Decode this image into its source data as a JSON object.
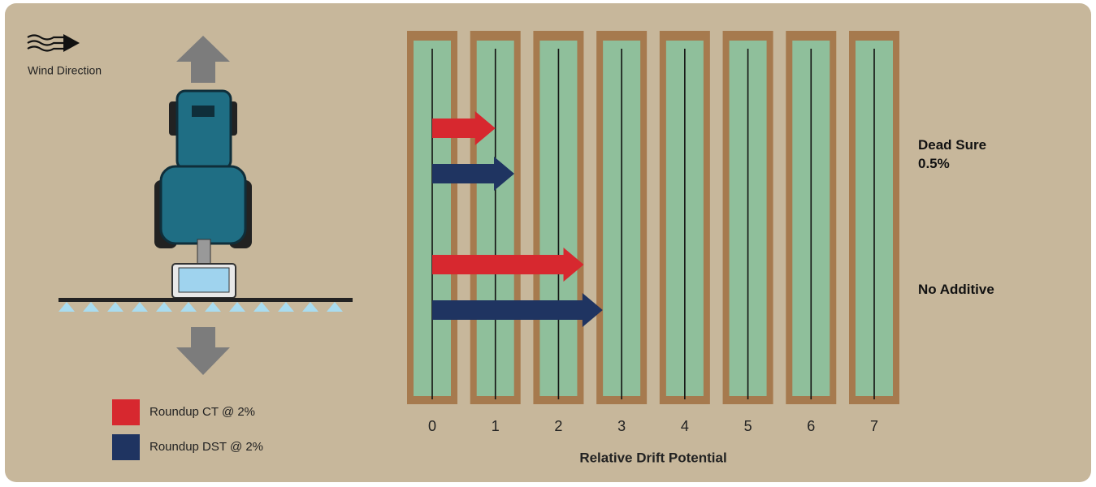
{
  "chart_data": {
    "type": "bar",
    "orientation": "horizontal",
    "annotation": "Wind Direction",
    "x_label": "Relative Drift Potential",
    "categories": [
      "Dead Sure 0.5%",
      "No Additive"
    ],
    "series": [
      {
        "name": "Roundup CT @ 2%",
        "color": "#d7282f",
        "values": [
          1.0,
          2.4
        ]
      },
      {
        "name": "Roundup DST @ 2%",
        "color": "#1f3461",
        "values": [
          1.3,
          2.7
        ]
      }
    ],
    "xlim": [
      0,
      7
    ],
    "xticks": [
      0,
      1,
      2,
      3,
      4,
      5,
      6,
      7
    ],
    "grid": true
  }
}
